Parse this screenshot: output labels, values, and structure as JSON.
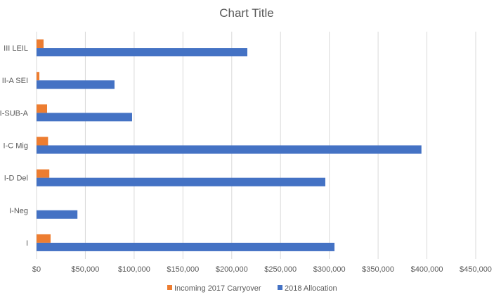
{
  "chart_data": {
    "type": "bar",
    "orientation": "horizontal",
    "title": "Chart Title",
    "categories": [
      "III LEIL",
      "II-A SEI",
      "SI-SUB-A",
      "I-C Mig",
      "I-D Del",
      "I-Neg",
      "I"
    ],
    "series": [
      {
        "name": "Incoming 2017 Carryover",
        "color": "#ED7D31",
        "values": [
          7200,
          2900,
          10800,
          11800,
          13100,
          0,
          14400
        ]
      },
      {
        "name": "2018 Allocation",
        "color": "#4472C4",
        "values": [
          216000,
          79900,
          97900,
          394400,
          295900,
          41900,
          305300
        ]
      }
    ],
    "xlim": [
      0,
      450000
    ],
    "xticks": [
      "$0",
      "$50,000",
      "$100,000",
      "$150,000",
      "$200,000",
      "$250,000",
      "$300,000",
      "$350,000",
      "$400,000",
      "$450,000"
    ],
    "grid": true,
    "legend": "bottom",
    "xlabel": "",
    "ylabel": ""
  }
}
